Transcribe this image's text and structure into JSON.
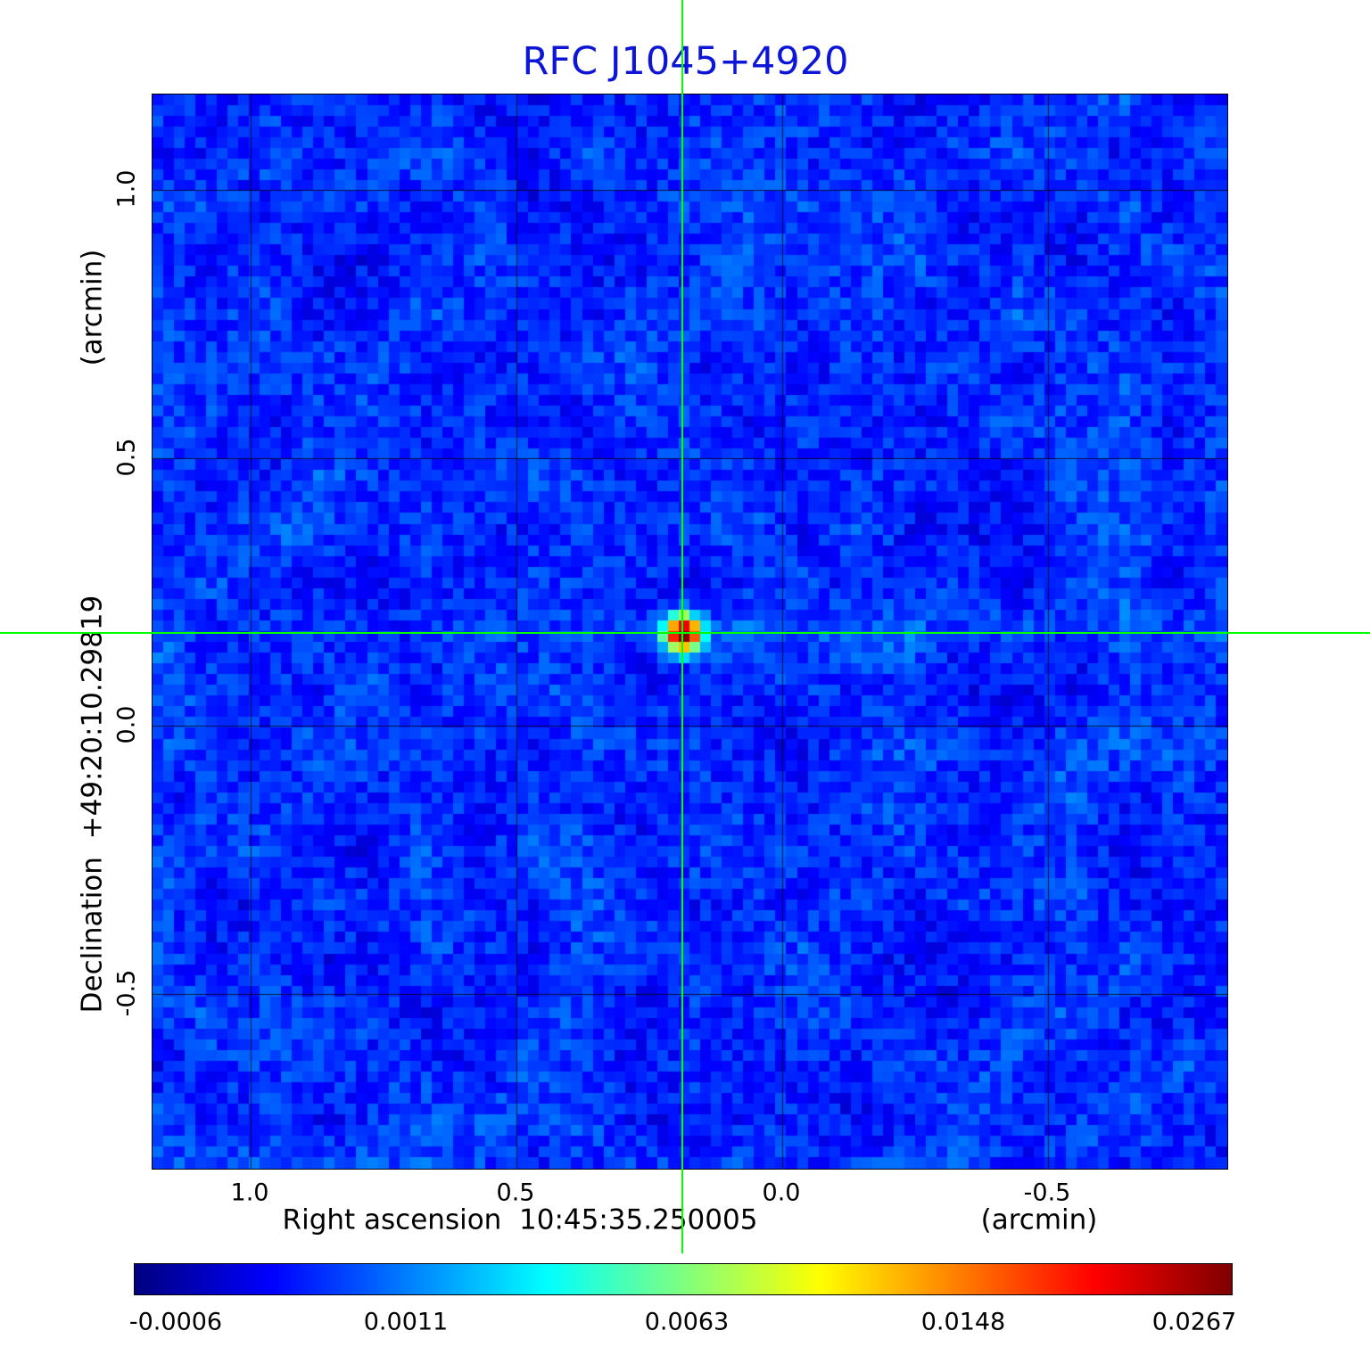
{
  "title": {
    "text": "RFC J1045+4920"
  },
  "colors": {
    "title": "#0d15d6",
    "crosshair": "#00ff00",
    "grid": "#000000",
    "background": "#ffffff"
  },
  "y_axis": {
    "label_main": "Declination  +49:20:10.29819",
    "label_unit": "(arcmin)",
    "ticks": [
      "1.0",
      "0.5",
      "0.0",
      "-0.5"
    ]
  },
  "x_axis": {
    "label_main": "Right ascension  10:45:35.250005",
    "label_unit": "(arcmin)",
    "ticks": [
      "1.0",
      "0.5",
      "0.0",
      "-0.5"
    ]
  },
  "colorbar": {
    "ticks": [
      "-0.0006",
      "0.0011",
      "0.0063",
      "0.0148",
      "0.0267"
    ],
    "tick_positions": [
      0.038,
      0.248,
      0.504,
      0.756,
      0.967
    ],
    "colormap": "jet"
  },
  "chart_data": {
    "type": "heatmap",
    "title": "RFC J1045+4920",
    "xlabel": "Right ascension 10:45:35.250005 (arcmin)",
    "ylabel": "Declination +49:20:10.29819 (arcmin)",
    "x_range_arcmin": [
      1.184,
      -0.838
    ],
    "y_range_arcmin": [
      1.178,
      -0.826
    ],
    "x_ticks_arcmin": [
      1.0,
      0.5,
      0.0,
      -0.5
    ],
    "y_ticks_arcmin": [
      1.0,
      0.5,
      0.0,
      -0.5
    ],
    "grid": true,
    "colormap": "jet",
    "value_ticks": [
      -0.0006,
      0.0011,
      0.0063,
      0.0148,
      0.0267
    ],
    "value_min": -0.0006,
    "value_peak": 0.0267,
    "background_noise_range": [
      -0.0006,
      0.002
    ],
    "source": {
      "ra_offset_arcmin": 0.186,
      "dec_offset_arcmin": 0.172,
      "peak": 0.0267
    },
    "crosshair_color": "#00ff00",
    "cells": 100
  }
}
